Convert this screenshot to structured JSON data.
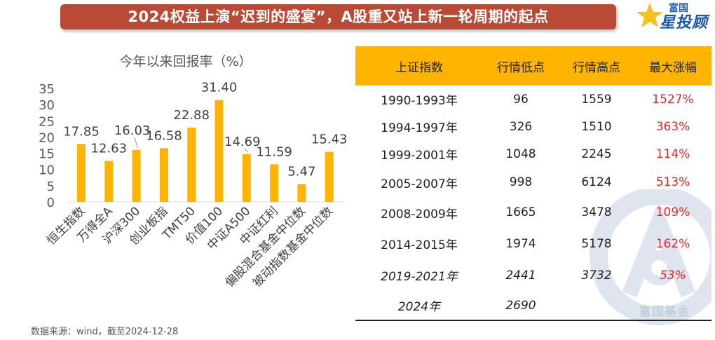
{
  "header": {
    "title": "2024权益上演“迟到的盛宴”，A股重又站上新一轮周期的起点",
    "logo_top": "富国",
    "logo_main": "星投顾"
  },
  "chart_data": {
    "type": "bar",
    "title": "今年以来回报率（%）",
    "categories": [
      "恒生指数",
      "万得全A",
      "沪深300",
      "创业板指",
      "TMT50",
      "价值100",
      "中证A500",
      "中证红利",
      "偏股混合基金中位数",
      "被动指数基金中位数"
    ],
    "values": [
      17.85,
      12.63,
      16.03,
      16.58,
      22.88,
      31.4,
      14.69,
      11.59,
      5.47,
      15.43
    ],
    "value_labels": [
      "17.85",
      "12.63",
      "16.03",
      "16.58",
      "22.88",
      "31.40",
      "14.69",
      "11.59",
      "5.47",
      "15.43"
    ],
    "ylim": [
      0,
      35
    ],
    "yticks": [
      0,
      5,
      10,
      15,
      20,
      25,
      30,
      35
    ],
    "xlabel": "",
    "ylabel": "",
    "bar_color": "#ffb400",
    "grid": false
  },
  "table": {
    "headers": [
      "上证指数",
      "行情低点",
      "行情高点",
      "最大涨幅"
    ],
    "rows": [
      {
        "period": "1990-1993年",
        "low": "96",
        "high": "1559",
        "gain": "1527%",
        "italic": false
      },
      {
        "period": "1994-1997年",
        "low": "326",
        "high": "1510",
        "gain": "363%",
        "italic": false
      },
      {
        "period": "1999-2001年",
        "low": "1048",
        "high": "2245",
        "gain": "114%",
        "italic": false
      },
      {
        "period": "2005-2007年",
        "low": "998",
        "high": "6124",
        "gain": "513%",
        "italic": false
      },
      {
        "period": "2008-2009年",
        "low": "1665",
        "high": "3478",
        "gain": "109%",
        "italic": false
      },
      {
        "period": "2014-2015年",
        "low": "1974",
        "high": "5178",
        "gain": "162%",
        "italic": false
      },
      {
        "period": "2019-2021年",
        "low": "2441",
        "high": "3732",
        "gain": "53%",
        "italic": true
      },
      {
        "period": "2024年",
        "low": "2690",
        "high": "",
        "gain": "",
        "italic": true
      }
    ]
  },
  "footer": {
    "source": "数据来源：wind，截至2024-12-28"
  },
  "watermark": {
    "text": "富国基金"
  },
  "colors": {
    "title_bg": "#b94a36",
    "accent": "#ffb400",
    "gain_red": "#e6262a",
    "logo_blue": "#1e56a6"
  }
}
